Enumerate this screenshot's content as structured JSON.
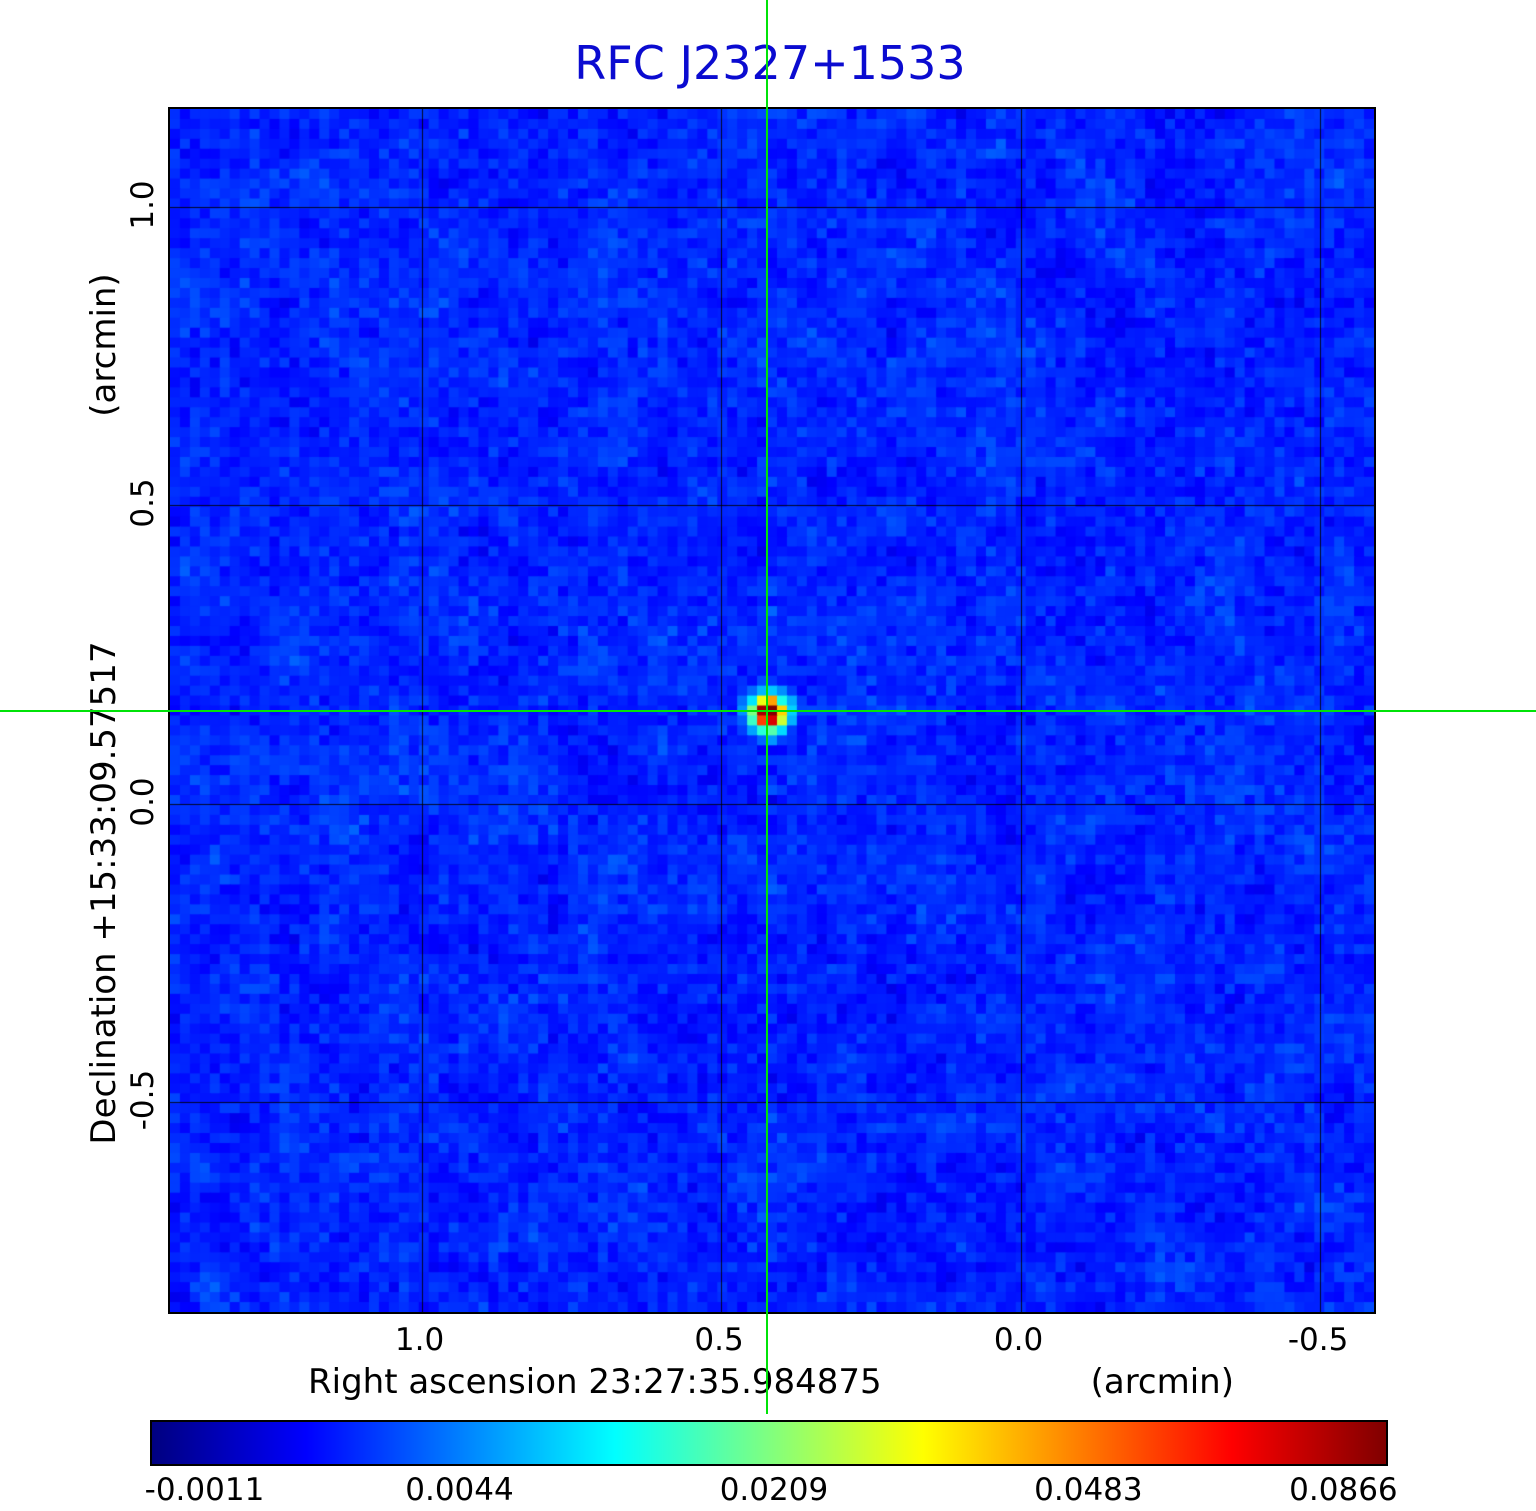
{
  "title": "RFC J2327+1533",
  "colors": {
    "title": "#0b0bd0",
    "crosshair": "#00e308",
    "grid": "#000000",
    "background_sky": "#1a46e0",
    "figure_background": "#ffffff"
  },
  "chart_data": {
    "type": "heatmap",
    "title": "RFC J2327+1533",
    "xlabel": "Right ascension  23:27:35.984875",
    "xlabel_unit": "(arcmin)",
    "ylabel": "Declination  +15:33:09.57517",
    "ylabel_unit": "(arcmin)",
    "x_range": [
      1.42,
      -0.59
    ],
    "y_range": [
      1.164,
      -0.852
    ],
    "x_ticks": [
      {
        "label": "1.0",
        "value": 1.0
      },
      {
        "label": "0.5",
        "value": 0.5
      },
      {
        "label": "0.0",
        "value": 0.0
      },
      {
        "label": "-0.5",
        "value": -0.5
      }
    ],
    "y_ticks": [
      {
        "label": "1.0",
        "value": 1.0
      },
      {
        "label": "0.5",
        "value": 0.5
      },
      {
        "label": "0.0",
        "value": 0.0
      },
      {
        "label": "-0.5",
        "value": -0.5
      }
    ],
    "grid": true,
    "colormap": "jet",
    "source": {
      "x_arcmin": 0.42,
      "y_arcmin": 0.152,
      "peak_value": 0.0866
    },
    "colorbar": {
      "vmin": -0.0011,
      "vmax": 0.0866,
      "ticks": [
        {
          "label": "-0.0011",
          "pos": 0.044
        },
        {
          "label": "0.0044",
          "pos": 0.25
        },
        {
          "label": "0.0209",
          "pos": 0.504
        },
        {
          "label": "0.0483",
          "pos": 0.758
        },
        {
          "label": "0.0866",
          "pos": 0.964
        }
      ]
    }
  }
}
